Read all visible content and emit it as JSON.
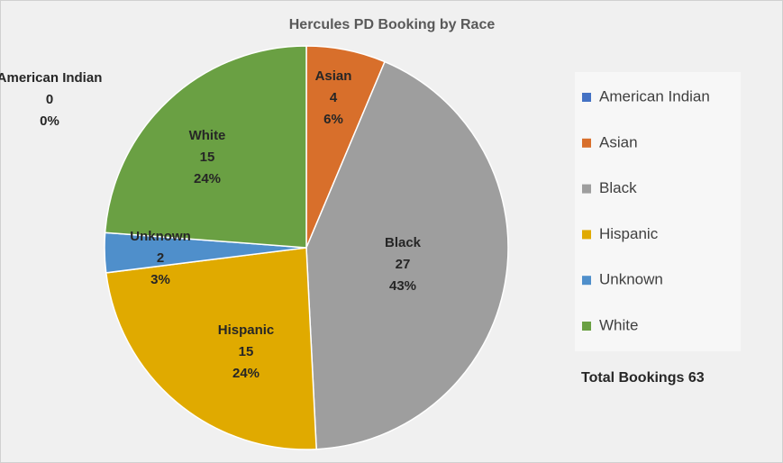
{
  "chart_data": {
    "type": "pie",
    "title": "Hercules PD Booking by Race",
    "categories": [
      "American Indian",
      "Asian",
      "Black",
      "Hispanic",
      "Unknown",
      "White"
    ],
    "values": [
      0,
      4,
      27,
      15,
      2,
      15
    ],
    "percent_labels": [
      "0%",
      "6%",
      "43%",
      "24%",
      "3%",
      "24%"
    ],
    "colors": [
      "#4472c4",
      "#d86f2b",
      "#9e9e9e",
      "#e0aa00",
      "#4f8fcb",
      "#6aa043"
    ],
    "legend": "right",
    "annotation": "Total Bookings 63"
  }
}
